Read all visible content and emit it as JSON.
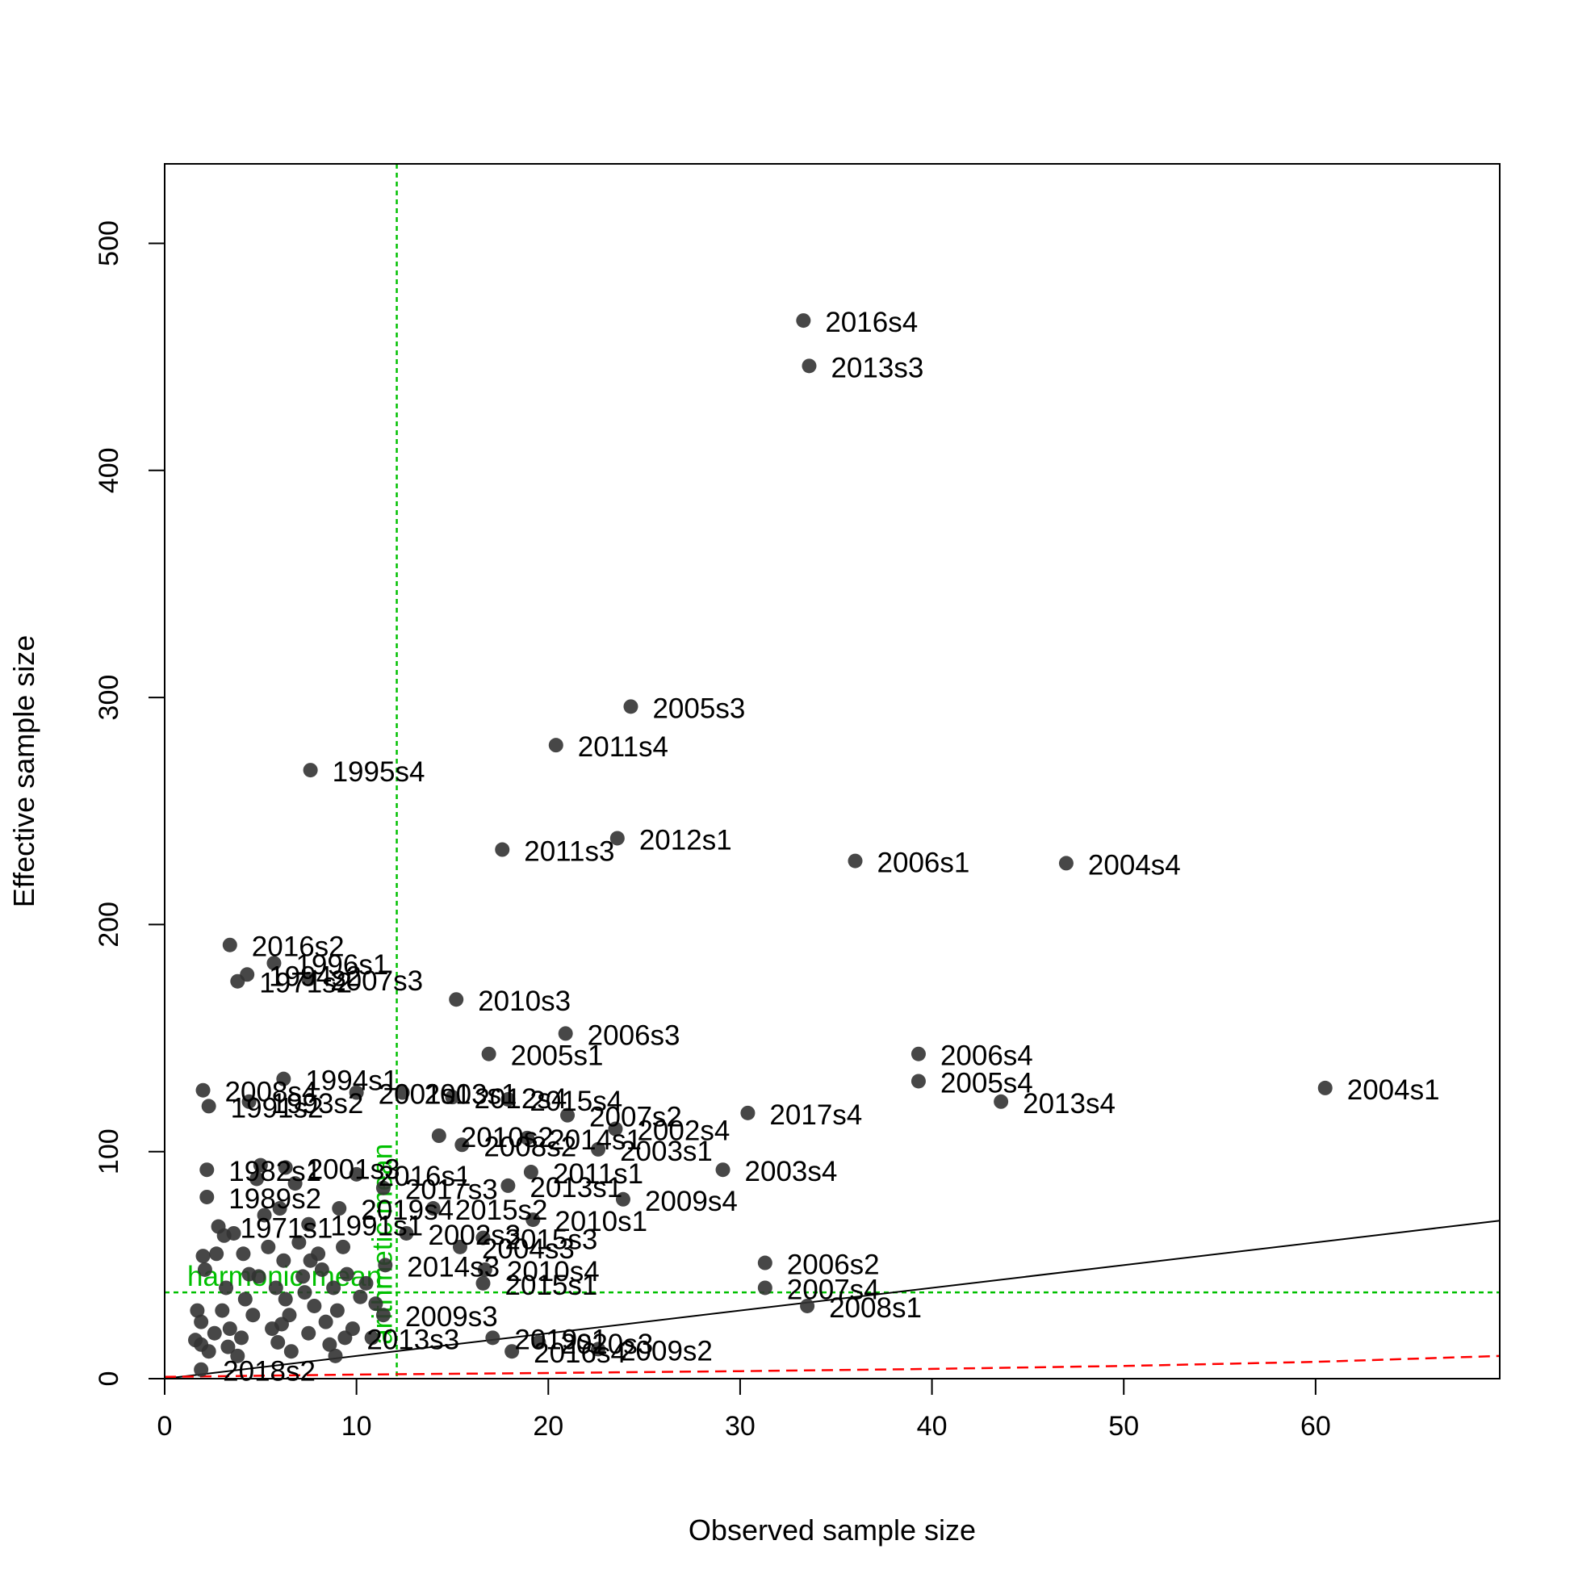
{
  "chart_data": {
    "type": "scatter",
    "xlabel": "Observed sample size",
    "ylabel": "Effective sample size",
    "xlim": [
      0,
      69.6
    ],
    "ylim": [
      0,
      535
    ],
    "x_ticks": [
      0,
      10,
      20,
      30,
      40,
      50,
      60
    ],
    "y_ticks": [
      0,
      100,
      200,
      300,
      400,
      500
    ],
    "grid": false,
    "point_color": "#333333",
    "one_to_one_line": {
      "x": [
        0,
        69.6
      ],
      "y": [
        0,
        69.6
      ],
      "color": "#000000"
    },
    "trend_line": {
      "color": "#ff0000",
      "x": [
        0,
        10,
        20,
        30,
        40,
        50,
        60,
        69.6
      ],
      "y": [
        0.8,
        1.8,
        2.5,
        3.3,
        4.3,
        5.6,
        7.4,
        10
      ]
    },
    "reference_lines": [
      {
        "label": "harmonic mean",
        "orientation": "horizontal",
        "value": 38,
        "color": "#00c000"
      },
      {
        "label": "arithmetic mean",
        "orientation": "vertical",
        "value": 12.1,
        "color": "#00c000"
      }
    ],
    "points": [
      {
        "label": "2016s4",
        "x": 33.3,
        "y": 466
      },
      {
        "label": "2013s3",
        "x": 33.6,
        "y": 446
      },
      {
        "label": "2005s3",
        "x": 24.3,
        "y": 296
      },
      {
        "label": "2011s4",
        "x": 20.4,
        "y": 279
      },
      {
        "label": "1995s4",
        "x": 7.6,
        "y": 268
      },
      {
        "label": "2012s1",
        "x": 23.6,
        "y": 238
      },
      {
        "label": "2011s3",
        "x": 17.6,
        "y": 233
      },
      {
        "label": "2006s1",
        "x": 36.0,
        "y": 228
      },
      {
        "label": "2004s4",
        "x": 47.0,
        "y": 227
      },
      {
        "label": "2016s2",
        "x": 3.4,
        "y": 191
      },
      {
        "label": "1996s1",
        "x": 5.7,
        "y": 183
      },
      {
        "label": "1994s2",
        "x": 4.3,
        "y": 178
      },
      {
        "label": "1971s2",
        "x": 3.8,
        "y": 175
      },
      {
        "label": "2007s3",
        "x": 7.5,
        "y": 176
      },
      {
        "label": "2010s3",
        "x": 15.2,
        "y": 167
      },
      {
        "label": "2006s3",
        "x": 20.9,
        "y": 152
      },
      {
        "label": "2005s1",
        "x": 16.9,
        "y": 143
      },
      {
        "label": "2006s4",
        "x": 39.3,
        "y": 143
      },
      {
        "label": "2005s4",
        "x": 39.3,
        "y": 131
      },
      {
        "label": "2004s1",
        "x": 60.5,
        "y": 128
      },
      {
        "label": "2013s4",
        "x": 43.6,
        "y": 122
      },
      {
        "label": "2017s4",
        "x": 30.4,
        "y": 117
      },
      {
        "label": "1994s1",
        "x": 6.2,
        "y": 132
      },
      {
        "label": "2008s4",
        "x": 2.0,
        "y": 127
      },
      {
        "label": "1993s2",
        "x": 4.4,
        "y": 122
      },
      {
        "label": "1991s2",
        "x": 2.3,
        "y": 120
      },
      {
        "label": "2001s1",
        "x": 10.0,
        "y": 126
      },
      {
        "label": "2003s1",
        "x": 12.4,
        "y": 126
      },
      {
        "label": "2012s4",
        "x": 15.0,
        "y": 124
      },
      {
        "label": "2015s4",
        "x": 17.9,
        "y": 123
      },
      {
        "label": "2007s2",
        "x": 21.0,
        "y": 116
      },
      {
        "label": "2002s4",
        "x": 23.5,
        "y": 110
      },
      {
        "label": "2010s2",
        "x": 14.3,
        "y": 107
      },
      {
        "label": "2014s1",
        "x": 18.9,
        "y": 106
      },
      {
        "label": "2008s2",
        "x": 15.5,
        "y": 103
      },
      {
        "label": "2003s1",
        "x": 22.6,
        "y": 101
      },
      {
        "label": "2003s4",
        "x": 29.1,
        "y": 92
      },
      {
        "label": "2011s1",
        "x": 19.1,
        "y": 91
      },
      {
        "label": "2001s3",
        "x": 6.3,
        "y": 93
      },
      {
        "label": "1982s1",
        "x": 2.2,
        "y": 92
      },
      {
        "label": "2016s1",
        "x": 10.0,
        "y": 90
      },
      {
        "label": "2013s1",
        "x": 17.9,
        "y": 85
      },
      {
        "label": "2017s3",
        "x": 11.4,
        "y": 84
      },
      {
        "label": "2009s4",
        "x": 23.9,
        "y": 79
      },
      {
        "label": "1989s2",
        "x": 2.2,
        "y": 80
      },
      {
        "label": "2019s4",
        "x": 9.1,
        "y": 75
      },
      {
        "label": "2015s2",
        "x": 14.0,
        "y": 75
      },
      {
        "label": "2010s1",
        "x": 19.2,
        "y": 70
      },
      {
        "label": "1991s1",
        "x": 7.5,
        "y": 68
      },
      {
        "label": "1971s1",
        "x": 2.8,
        "y": 67
      },
      {
        "label": "2002s3",
        "x": 12.6,
        "y": 64
      },
      {
        "label": "2015s3",
        "x": 16.6,
        "y": 62
      },
      {
        "label": "2004s3",
        "x": 15.4,
        "y": 58
      },
      {
        "label": "2006s2",
        "x": 31.3,
        "y": 51
      },
      {
        "label": "2014s3",
        "x": 11.5,
        "y": 50
      },
      {
        "label": "2010s4",
        "x": 16.7,
        "y": 48
      },
      {
        "label": "2015s1",
        "x": 16.6,
        "y": 42
      },
      {
        "label": "2007s4",
        "x": 31.3,
        "y": 40
      },
      {
        "label": "2008s1",
        "x": 33.5,
        "y": 32
      },
      {
        "label": "2009s3",
        "x": 11.4,
        "y": 28
      },
      {
        "label": "2019s1",
        "x": 17.1,
        "y": 18
      },
      {
        "label": "2020s3",
        "x": 19.5,
        "y": 16
      },
      {
        "label": "2009s2",
        "x": 22.6,
        "y": 13
      },
      {
        "label": "2016s4",
        "x": 18.1,
        "y": 12
      },
      {
        "label": "2013s3",
        "x": 9.4,
        "y": 18
      },
      {
        "label": "2018s2",
        "x": 1.9,
        "y": 4
      },
      {
        "x": 2.0,
        "y": 54
      },
      {
        "x": 2.1,
        "y": 48
      },
      {
        "x": 1.7,
        "y": 30
      },
      {
        "x": 1.9,
        "y": 25
      },
      {
        "x": 1.6,
        "y": 17
      },
      {
        "x": 1.9,
        "y": 15
      },
      {
        "x": 2.3,
        "y": 12
      },
      {
        "x": 2.7,
        "y": 55
      },
      {
        "x": 3.1,
        "y": 63
      },
      {
        "x": 3.6,
        "y": 64
      },
      {
        "x": 4.1,
        "y": 55
      },
      {
        "x": 3.2,
        "y": 40
      },
      {
        "x": 3.0,
        "y": 30
      },
      {
        "x": 3.4,
        "y": 22
      },
      {
        "x": 3.3,
        "y": 14
      },
      {
        "x": 3.8,
        "y": 10
      },
      {
        "x": 4.2,
        "y": 35
      },
      {
        "x": 4.6,
        "y": 28
      },
      {
        "x": 4.9,
        "y": 45
      },
      {
        "x": 5.0,
        "y": 94
      },
      {
        "x": 4.8,
        "y": 88
      },
      {
        "x": 5.4,
        "y": 58
      },
      {
        "x": 5.6,
        "y": 22
      },
      {
        "x": 5.9,
        "y": 16
      },
      {
        "x": 6.0,
        "y": 75
      },
      {
        "x": 6.2,
        "y": 52
      },
      {
        "x": 6.3,
        "y": 35
      },
      {
        "x": 6.5,
        "y": 28
      },
      {
        "x": 6.6,
        "y": 12
      },
      {
        "x": 7.0,
        "y": 60
      },
      {
        "x": 7.2,
        "y": 45
      },
      {
        "x": 7.3,
        "y": 38
      },
      {
        "x": 7.5,
        "y": 20
      },
      {
        "x": 7.8,
        "y": 32
      },
      {
        "x": 8.0,
        "y": 55
      },
      {
        "x": 8.2,
        "y": 48
      },
      {
        "x": 8.4,
        "y": 25
      },
      {
        "x": 8.6,
        "y": 15
      },
      {
        "x": 8.8,
        "y": 40
      },
      {
        "x": 9.0,
        "y": 30
      },
      {
        "x": 9.3,
        "y": 58
      },
      {
        "x": 9.5,
        "y": 46
      },
      {
        "x": 9.8,
        "y": 22
      },
      {
        "x": 10.2,
        "y": 36
      },
      {
        "x": 10.5,
        "y": 42
      },
      {
        "x": 10.8,
        "y": 18
      },
      {
        "x": 11.0,
        "y": 33
      },
      {
        "x": 5.2,
        "y": 72
      },
      {
        "x": 6.8,
        "y": 86
      },
      {
        "x": 4.4,
        "y": 46
      },
      {
        "x": 5.8,
        "y": 40
      },
      {
        "x": 7.6,
        "y": 52
      },
      {
        "x": 2.6,
        "y": 20
      },
      {
        "x": 4.0,
        "y": 18
      },
      {
        "x": 6.1,
        "y": 24
      },
      {
        "x": 8.9,
        "y": 10
      }
    ]
  }
}
